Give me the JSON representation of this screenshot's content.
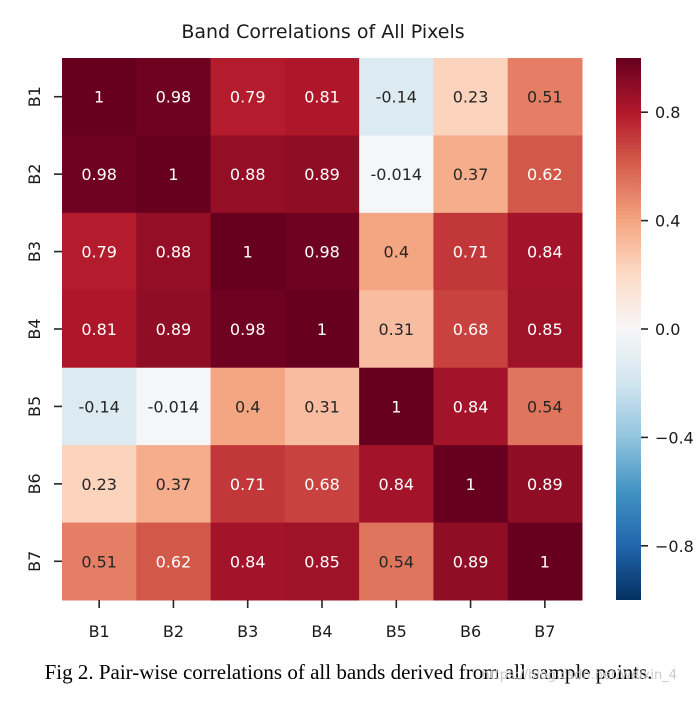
{
  "chart_data": {
    "type": "heatmap",
    "title": "Band Correlations of All Pixels",
    "xlabel": "",
    "ylabel": "",
    "x_categories": [
      "B1",
      "B2",
      "B3",
      "B4",
      "B5",
      "B6",
      "B7"
    ],
    "y_categories": [
      "B1",
      "B2",
      "B3",
      "B4",
      "B5",
      "B6",
      "B7"
    ],
    "values": [
      [
        1,
        0.98,
        0.79,
        0.81,
        -0.14,
        0.23,
        0.51
      ],
      [
        0.98,
        1,
        0.88,
        0.89,
        -0.014,
        0.37,
        0.62
      ],
      [
        0.79,
        0.88,
        1,
        0.98,
        0.4,
        0.71,
        0.84
      ],
      [
        0.81,
        0.89,
        0.98,
        1,
        0.31,
        0.68,
        0.85
      ],
      [
        -0.14,
        -0.014,
        0.4,
        0.31,
        1,
        0.84,
        0.54
      ],
      [
        0.23,
        0.37,
        0.71,
        0.68,
        0.84,
        1,
        0.89
      ],
      [
        0.51,
        0.62,
        0.84,
        0.85,
        0.54,
        0.89,
        1
      ]
    ],
    "colormap": "RdBu_r",
    "colorbar": {
      "vmin": -1,
      "vmax": 1,
      "tick_values": [
        0.8,
        0.4,
        0.0,
        -0.4,
        -0.8
      ],
      "tick_labels": [
        "0.8",
        "0.4",
        "0.0",
        "−0.4",
        "−0.8"
      ]
    },
    "legend": "colorbar-right",
    "grid": false
  },
  "caption": "Fig 2. Pair-wise correlations of all bands derived from all sample points.",
  "watermark": "https://blog.csdn.net/weixin_4"
}
